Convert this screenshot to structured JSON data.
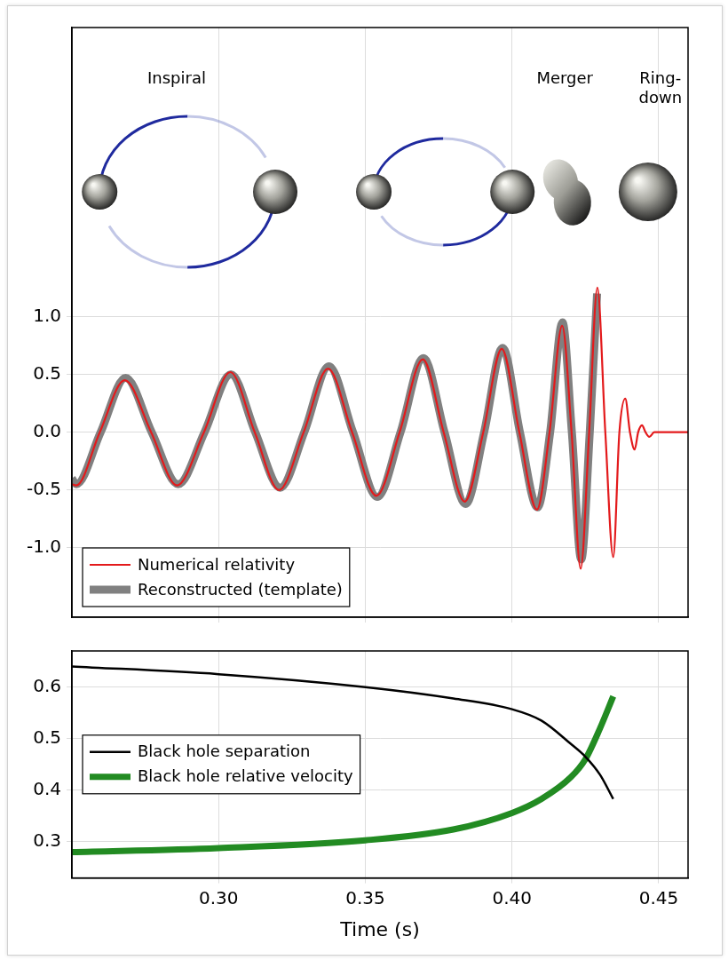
{
  "chart_data": [
    {
      "type": "line",
      "annotations": [
        "Inspiral",
        "Merger",
        "Ring-down"
      ],
      "series": [
        {
          "name": "Numerical relativity",
          "color": "#e31a1c",
          "x": [
            0.25,
            0.2515,
            0.2595,
            0.268,
            0.277,
            0.2858,
            0.295,
            0.304,
            0.3123,
            0.3206,
            0.329,
            0.3373,
            0.3455,
            0.3538,
            0.3617,
            0.3696,
            0.3767,
            0.3839,
            0.3902,
            0.3965,
            0.4025,
            0.4085,
            0.4128,
            0.4171,
            0.4203,
            0.4234,
            0.4263,
            0.4291,
            0.4318,
            0.4345,
            0.4366,
            0.4386,
            0.4402,
            0.4418,
            0.443,
            0.4443,
            0.4455,
            0.4468,
            0.4485,
            0.46
          ],
          "values": [
            -0.45,
            -0.46,
            0,
            0.45,
            0,
            -0.46,
            0,
            0.52,
            0,
            -0.5,
            0,
            0.55,
            0,
            -0.55,
            0,
            0.63,
            0,
            -0.6,
            0,
            0.72,
            0,
            -0.67,
            0,
            0.92,
            0,
            -1.18,
            0,
            1.25,
            0,
            -1.08,
            0,
            0.29,
            0,
            -0.15,
            0,
            0.06,
            0,
            -0.04,
            0,
            0
          ]
        },
        {
          "name": "Reconstructed (template)",
          "color": "#808080",
          "x": [
            0.25,
            0.2515,
            0.2598,
            0.2683,
            0.2772,
            0.2862,
            0.2952,
            0.3042,
            0.3125,
            0.321,
            0.3292,
            0.3376,
            0.3458,
            0.3541,
            0.362,
            0.3698,
            0.377,
            0.3842,
            0.3905,
            0.3968,
            0.4027,
            0.4087,
            0.413,
            0.4172,
            0.4204,
            0.4236,
            0.4265,
            0.429
          ],
          "values": [
            -0.4,
            -0.45,
            0,
            0.47,
            0,
            -0.45,
            0,
            0.5,
            0,
            -0.48,
            0,
            0.57,
            0,
            -0.56,
            0,
            0.64,
            0,
            -0.62,
            0,
            0.73,
            0,
            -0.65,
            0,
            0.95,
            0,
            -1.1,
            0,
            1.2
          ]
        }
      ],
      "xlim": [
        0.25,
        0.46
      ],
      "xticks": [
        {
          "value": 0.3,
          "label": "0.30"
        },
        0.35,
        {
          "value": 0.4,
          "label": "0.40"
        },
        0.45
      ],
      "ylim": [
        -1.6,
        3.5
      ],
      "yticks": [
        {
          "value": -1,
          "label": "-1.0"
        },
        -0.5,
        {
          "value": 0,
          "label": "0.0"
        },
        0.5,
        {
          "value": 1,
          "label": "1.0"
        }
      ],
      "tick_labels": "y",
      "grid": true,
      "legend": "lower left"
    },
    {
      "type": "line",
      "x_label": "Time (s)",
      "series": [
        {
          "name": "Black hole separation",
          "color": "#000000",
          "x": [
            0.25,
            0.3,
            0.35,
            0.38,
            0.4,
            0.41,
            0.42,
            0.425,
            0.43,
            0.4345
          ],
          "values": [
            0.64,
            0.625,
            0.6,
            0.578,
            0.557,
            0.535,
            0.49,
            0.465,
            0.43,
            0.383
          ]
        },
        {
          "name": "Black hole relative velocity",
          "color": "#228b22",
          "x": [
            0.25,
            0.3,
            0.35,
            0.38,
            0.4,
            0.41,
            0.42,
            0.425,
            0.43,
            0.4345
          ],
          "values": [
            0.28,
            0.288,
            0.303,
            0.324,
            0.356,
            0.383,
            0.425,
            0.46,
            0.52,
            0.582
          ]
        }
      ],
      "xlim": [
        0.25,
        0.46
      ],
      "xticks": [
        {
          "value": 0.3,
          "label": "0.30"
        },
        0.35,
        {
          "value": 0.4,
          "label": "0.40"
        },
        0.45
      ],
      "ylim": [
        0.23,
        0.67
      ],
      "yticks": [
        0.3,
        0.4,
        0.5,
        0.6
      ],
      "grid": true,
      "legend": "center left"
    }
  ]
}
